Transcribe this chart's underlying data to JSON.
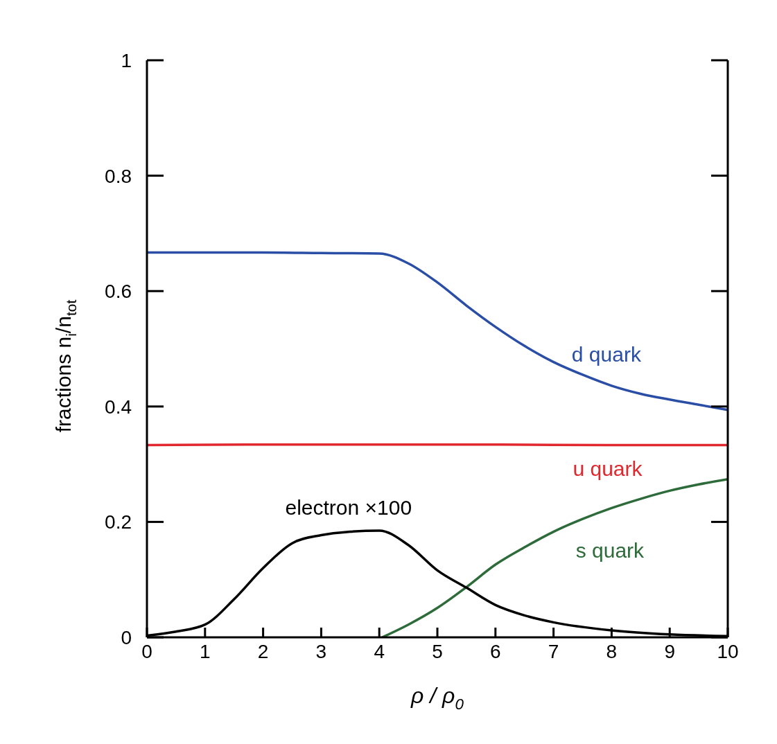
{
  "chart_data": {
    "type": "line",
    "xlabel": "ρ / ρ$_{0}$",
    "ylabel": "fractions   n$_{i}$/n$_{tot}$",
    "xlim": [
      0,
      10
    ],
    "ylim": [
      0,
      1
    ],
    "xticks": [
      0,
      1,
      2,
      3,
      4,
      5,
      6,
      7,
      8,
      9,
      10
    ],
    "yticks": [
      0,
      0.2,
      0.4,
      0.6,
      0.8,
      1
    ],
    "marker": "none",
    "line_style": "solid",
    "series": [
      {
        "name": "d quark",
        "color": "#2a4ea6",
        "x": [
          0,
          1,
          2,
          3,
          4,
          4.5,
          5,
          5.5,
          6,
          6.5,
          7,
          7.5,
          8,
          8.5,
          9,
          9.5,
          10
        ],
        "values": [
          0.667,
          0.667,
          0.667,
          0.666,
          0.665,
          0.648,
          0.615,
          0.575,
          0.538,
          0.505,
          0.477,
          0.455,
          0.436,
          0.422,
          0.412,
          0.403,
          0.394
        ]
      },
      {
        "name": "u quark",
        "color": "#e0282e",
        "x": [
          0,
          2,
          4,
          6,
          8,
          10
        ],
        "values": [
          0.333,
          0.334,
          0.334,
          0.334,
          0.333,
          0.333
        ]
      },
      {
        "name": "s quark",
        "color": "#2e6b3a",
        "x": [
          4.05,
          4.5,
          5,
          5.5,
          6,
          6.5,
          7,
          7.5,
          8,
          8.5,
          9,
          9.5,
          10
        ],
        "values": [
          0,
          0.022,
          0.051,
          0.087,
          0.126,
          0.156,
          0.183,
          0.205,
          0.224,
          0.24,
          0.254,
          0.265,
          0.274
        ]
      },
      {
        "name": "electron ×100",
        "color": "#000000",
        "x": [
          0,
          0.5,
          1,
          1.5,
          2,
          2.5,
          3,
          3.5,
          4,
          4.5,
          5,
          5.5,
          6,
          6.5,
          7,
          8,
          9,
          10
        ],
        "values": [
          0.003,
          0.01,
          0.022,
          0.066,
          0.12,
          0.163,
          0.177,
          0.183,
          0.185,
          0.16,
          0.116,
          0.086,
          0.056,
          0.038,
          0.026,
          0.012,
          0.005,
          0.002
        ]
      }
    ]
  }
}
